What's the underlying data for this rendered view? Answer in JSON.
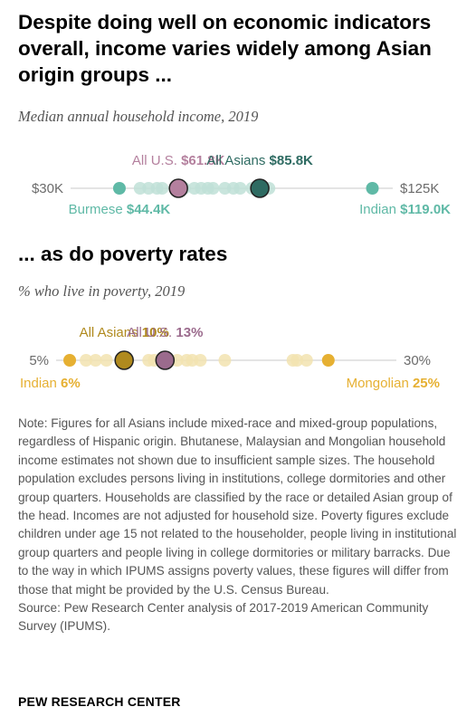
{
  "title": "Despite doing well on economic indicators overall, income varies widely among Asian origin groups ...",
  "section2_title": "... as do poverty rates",
  "chart_data": [
    {
      "type": "scatter",
      "subtitle": "Median annual household income, 2019",
      "axis_min_label": "$30K",
      "axis_max_label": "$125K",
      "xlim": [
        30,
        125
      ],
      "unit": "thousand USD",
      "background_dots": [
        50.5,
        53,
        55.5,
        57,
        63.5,
        66.5,
        68.5,
        70.5,
        72,
        75.5,
        78,
        80,
        83.5,
        86.5,
        88.5
      ],
      "highlights": [
        {
          "key": "us",
          "label": "All U.S.",
          "value_label": "$61.8K",
          "value": 61.8,
          "label_pos": "above",
          "anchor": "middle",
          "color": "#b4809e",
          "role": "large"
        },
        {
          "key": "asians",
          "label": "All Asians",
          "value_label": "$85.8K",
          "value": 85.8,
          "label_pos": "above",
          "anchor": "middle",
          "color": "#2e6b62",
          "role": "large"
        },
        {
          "key": "burmese",
          "label": "Burmese",
          "value_label": "$44.4K",
          "value": 44.4,
          "label_pos": "below",
          "anchor": "middle",
          "color": "#5fb9a6",
          "role": "small"
        },
        {
          "key": "indian",
          "label": "Indian",
          "value_label": "$119.0K",
          "value": 119.0,
          "label_pos": "below",
          "anchor": "end",
          "color": "#5fb9a6",
          "role": "small"
        }
      ],
      "colors": {
        "dot": "#bfe0d7",
        "accent": "#5fb9a6",
        "asian_dark": "#2e6b62",
        "us": "#b4809e"
      }
    },
    {
      "type": "scatter",
      "subtitle": "% who live in poverty, 2019",
      "axis_min_label": "5%",
      "axis_max_label": "30%",
      "xlim": [
        5,
        30
      ],
      "unit": "percent",
      "background_dots": [
        7.2,
        7.9,
        8.7,
        11.8,
        12.2,
        13.3,
        13.9,
        14.6,
        15.0,
        15.6,
        17.4,
        22.4,
        22.7,
        23.4
      ],
      "highlights": [
        {
          "key": "asians",
          "label": "All Asians",
          "value_label": "10%",
          "value": 10,
          "label_pos": "above",
          "anchor": "middle",
          "color": "#b08a1e",
          "role": "large"
        },
        {
          "key": "us",
          "label": "All U.S.",
          "value_label": "13%",
          "value": 13,
          "label_pos": "above",
          "anchor": "middle",
          "color": "#9b6b8d",
          "role": "large"
        },
        {
          "key": "indian",
          "label": "Indian",
          "value_label": "6%",
          "value": 6,
          "label_pos": "below",
          "anchor": "start",
          "color": "#e6b032",
          "role": "small"
        },
        {
          "key": "mongolian",
          "label": "Mongolian",
          "value_label": "25%",
          "value": 25,
          "label_pos": "below",
          "anchor": "end",
          "color": "#e6b032",
          "role": "small"
        }
      ],
      "colors": {
        "dot": "#f2e3b0",
        "accent": "#e6b032",
        "asian_dark": "#a07c14",
        "us": "#b4809e"
      }
    }
  ],
  "note": "Note: Figures for all Asians include mixed-race and mixed-group populations, regardless of Hispanic origin. Bhutanese, Malaysian and Mongolian household income estimates not shown due to insufficient sample sizes. The household population excludes persons living in institutions, college dormitories and other group quarters. Households are classified by the race or detailed Asian group of the head. Incomes are not adjusted for household size. Poverty figures exclude children under age 15 not related to the householder, people living in institutional group quarters and people living in college dormitories or military barracks. Due to the way in which IPUMS assigns poverty values, these figures will differ from those that might be provided by the U.S. Census Bureau.",
  "source": "Source: Pew Research Center analysis of 2017-2019 American Community Survey (IPUMS).",
  "brand": "PEW RESEARCH CENTER"
}
